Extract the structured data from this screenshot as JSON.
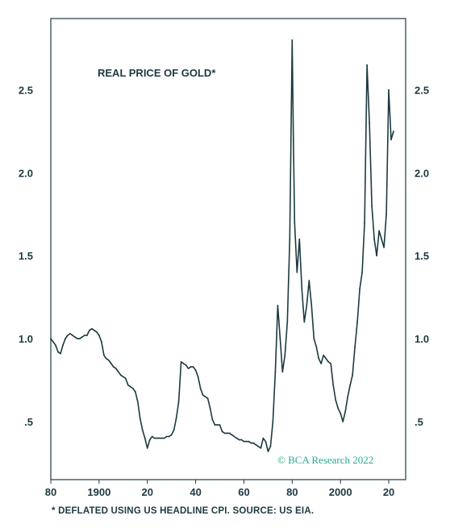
{
  "chart_data": {
    "type": "line",
    "title": "REAL PRICE OF GOLD*",
    "footnote": "* DEFLATED USING US HEADLINE CPI. SOURCE: US EIA.",
    "credit": "© BCA Research 2022",
    "xlim": [
      1880,
      2027
    ],
    "ylim": [
      0.15,
      2.93
    ],
    "x_ticks": [
      {
        "value": 1880,
        "label": "80"
      },
      {
        "value": 1900,
        "label": "1900"
      },
      {
        "value": 1920,
        "label": "20"
      },
      {
        "value": 1940,
        "label": "40"
      },
      {
        "value": 1960,
        "label": "60"
      },
      {
        "value": 1980,
        "label": "80"
      },
      {
        "value": 2000,
        "label": "2000"
      },
      {
        "value": 2020,
        "label": "20"
      }
    ],
    "y_ticks": [
      {
        "value": 0.5,
        "label": ".5"
      },
      {
        "value": 1.0,
        "label": "1.0"
      },
      {
        "value": 1.5,
        "label": "1.5"
      },
      {
        "value": 2.0,
        "label": "2.0"
      },
      {
        "value": 2.5,
        "label": "2.5"
      }
    ],
    "grid": false,
    "line_color": "#1c3a40",
    "series": [
      {
        "name": "",
        "points": [
          [
            1880,
            1.0
          ],
          [
            1881,
            0.98
          ],
          [
            1882,
            0.96
          ],
          [
            1883,
            0.92
          ],
          [
            1884,
            0.91
          ],
          [
            1885,
            0.96
          ],
          [
            1886,
            1.0
          ],
          [
            1887,
            1.02
          ],
          [
            1888,
            1.03
          ],
          [
            1889,
            1.02
          ],
          [
            1890,
            1.01
          ],
          [
            1891,
            1.0
          ],
          [
            1892,
            1.0
          ],
          [
            1893,
            1.01
          ],
          [
            1894,
            1.02
          ],
          [
            1895,
            1.02
          ],
          [
            1896,
            1.05
          ],
          [
            1897,
            1.06
          ],
          [
            1898,
            1.05
          ],
          [
            1899,
            1.04
          ],
          [
            1900,
            1.02
          ],
          [
            1901,
            0.98
          ],
          [
            1902,
            0.9
          ],
          [
            1903,
            0.88
          ],
          [
            1904,
            0.87
          ],
          [
            1905,
            0.85
          ],
          [
            1906,
            0.83
          ],
          [
            1907,
            0.82
          ],
          [
            1908,
            0.8
          ],
          [
            1909,
            0.78
          ],
          [
            1910,
            0.77
          ],
          [
            1911,
            0.76
          ],
          [
            1912,
            0.72
          ],
          [
            1913,
            0.71
          ],
          [
            1914,
            0.7
          ],
          [
            1915,
            0.68
          ],
          [
            1916,
            0.62
          ],
          [
            1917,
            0.52
          ],
          [
            1918,
            0.45
          ],
          [
            1919,
            0.4
          ],
          [
            1920,
            0.34
          ],
          [
            1921,
            0.39
          ],
          [
            1922,
            0.41
          ],
          [
            1923,
            0.4
          ],
          [
            1924,
            0.4
          ],
          [
            1925,
            0.4
          ],
          [
            1926,
            0.4
          ],
          [
            1927,
            0.4
          ],
          [
            1928,
            0.41
          ],
          [
            1929,
            0.41
          ],
          [
            1930,
            0.42
          ],
          [
            1931,
            0.45
          ],
          [
            1932,
            0.52
          ],
          [
            1933,
            0.62
          ],
          [
            1934,
            0.86
          ],
          [
            1935,
            0.85
          ],
          [
            1936,
            0.84
          ],
          [
            1937,
            0.82
          ],
          [
            1938,
            0.83
          ],
          [
            1939,
            0.83
          ],
          [
            1940,
            0.81
          ],
          [
            1941,
            0.77
          ],
          [
            1942,
            0.7
          ],
          [
            1943,
            0.66
          ],
          [
            1944,
            0.65
          ],
          [
            1945,
            0.64
          ],
          [
            1946,
            0.58
          ],
          [
            1947,
            0.51
          ],
          [
            1948,
            0.48
          ],
          [
            1949,
            0.48
          ],
          [
            1950,
            0.48
          ],
          [
            1951,
            0.44
          ],
          [
            1952,
            0.43
          ],
          [
            1953,
            0.43
          ],
          [
            1954,
            0.43
          ],
          [
            1955,
            0.42
          ],
          [
            1956,
            0.41
          ],
          [
            1957,
            0.4
          ],
          [
            1958,
            0.39
          ],
          [
            1959,
            0.39
          ],
          [
            1960,
            0.38
          ],
          [
            1961,
            0.38
          ],
          [
            1962,
            0.38
          ],
          [
            1963,
            0.37
          ],
          [
            1964,
            0.37
          ],
          [
            1965,
            0.36
          ],
          [
            1966,
            0.35
          ],
          [
            1967,
            0.34
          ],
          [
            1968,
            0.4
          ],
          [
            1969,
            0.38
          ],
          [
            1970,
            0.32
          ],
          [
            1971,
            0.35
          ],
          [
            1972,
            0.5
          ],
          [
            1973,
            0.8
          ],
          [
            1974,
            1.2
          ],
          [
            1975,
            1.0
          ],
          [
            1976,
            0.8
          ],
          [
            1977,
            0.9
          ],
          [
            1978,
            1.1
          ],
          [
            1979,
            1.6
          ],
          [
            1980,
            2.8
          ],
          [
            1980.5,
            2.2
          ],
          [
            1981,
            1.7
          ],
          [
            1982,
            1.4
          ],
          [
            1983,
            1.6
          ],
          [
            1984,
            1.3
          ],
          [
            1985,
            1.1
          ],
          [
            1986,
            1.2
          ],
          [
            1987,
            1.35
          ],
          [
            1988,
            1.2
          ],
          [
            1989,
            1.0
          ],
          [
            1990,
            0.95
          ],
          [
            1991,
            0.88
          ],
          [
            1992,
            0.85
          ],
          [
            1993,
            0.9
          ],
          [
            1994,
            0.88
          ],
          [
            1995,
            0.86
          ],
          [
            1996,
            0.85
          ],
          [
            1997,
            0.72
          ],
          [
            1998,
            0.63
          ],
          [
            1999,
            0.58
          ],
          [
            2000,
            0.55
          ],
          [
            2001,
            0.5
          ],
          [
            2002,
            0.56
          ],
          [
            2003,
            0.65
          ],
          [
            2004,
            0.72
          ],
          [
            2005,
            0.78
          ],
          [
            2006,
            0.95
          ],
          [
            2007,
            1.1
          ],
          [
            2008,
            1.3
          ],
          [
            2009,
            1.4
          ],
          [
            2010,
            1.7
          ],
          [
            2011,
            2.65
          ],
          [
            2012,
            2.3
          ],
          [
            2013,
            1.8
          ],
          [
            2014,
            1.6
          ],
          [
            2015,
            1.5
          ],
          [
            2016,
            1.65
          ],
          [
            2017,
            1.6
          ],
          [
            2018,
            1.55
          ],
          [
            2019,
            1.75
          ],
          [
            2020,
            2.5
          ],
          [
            2021,
            2.2
          ],
          [
            2022,
            2.25
          ]
        ]
      }
    ]
  }
}
